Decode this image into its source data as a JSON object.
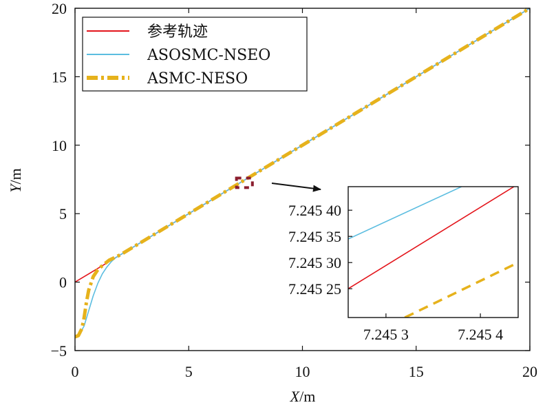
{
  "chart_data": [
    {
      "type": "line",
      "xlabel": {
        "var": "X",
        "unit": "/m"
      },
      "ylabel": {
        "var": "Y",
        "unit": "/m"
      },
      "xlim": [
        0,
        20
      ],
      "ylim": [
        -5,
        20
      ],
      "xticks": [
        "0",
        "5",
        "10",
        "15",
        "20"
      ],
      "yticks": [
        "−5",
        "0",
        "5",
        "10",
        "15",
        "20"
      ],
      "legend_position": "top-left",
      "series": [
        {
          "name": "参考轨迹",
          "color": "#e3141b",
          "style": "solid",
          "x": [
            0,
            20
          ],
          "y": [
            0,
            20
          ]
        },
        {
          "name": "ASOSMC-NSEO",
          "color": "#5bbde0",
          "style": "solid",
          "x": [
            0,
            0.2,
            0.4,
            0.6,
            0.8,
            1.0,
            1.2,
            1.4,
            1.6,
            1.8,
            2.0,
            2.5,
            3,
            5,
            10,
            15,
            20
          ],
          "y": [
            -4,
            -3.8,
            -3.2,
            -2.1,
            -1.0,
            -0.1,
            0.6,
            1.1,
            1.5,
            1.8,
            2.0,
            2.5,
            3,
            5,
            10,
            15,
            20
          ]
        },
        {
          "name": "ASMC-NESO",
          "color": "#e6b21c",
          "style": "dash-dot",
          "x": [
            0,
            0.15,
            0.3,
            0.4,
            0.5,
            0.6,
            0.8,
            1.0,
            1.2,
            1.5,
            2.0,
            2.5,
            3,
            5,
            10,
            15,
            20
          ],
          "y": [
            -4,
            -3.9,
            -3.4,
            -2.6,
            -1.5,
            -0.6,
            0.4,
            0.9,
            1.2,
            1.6,
            2.0,
            2.5,
            3,
            5,
            10,
            15,
            20
          ]
        }
      ],
      "zoom_box": {
        "x": [
          7.1,
          7.8
        ],
        "y": [
          6.9,
          7.6
        ]
      }
    },
    {
      "type": "line",
      "role": "inset",
      "xlim": [
        7.24526,
        7.24544
      ],
      "ylim": [
        7.245195,
        7.245445
      ],
      "xticks": [
        {
          "label": "7.245 3",
          "value": 7.2453
        },
        {
          "label": "7.245 4",
          "value": 7.2454
        }
      ],
      "yticks": [
        {
          "label": "7.245 25",
          "value": 7.24525
        },
        {
          "label": "7.245 30",
          "value": 7.2453
        },
        {
          "label": "7.245 35",
          "value": 7.24535
        },
        {
          "label": "7.245 40",
          "value": 7.2454
        }
      ],
      "series": [
        {
          "color": "#e3141b",
          "style": "solid",
          "x": [
            7.24526,
            7.24544
          ],
          "y": [
            7.24525,
            7.24545
          ]
        },
        {
          "color": "#5bbde0",
          "style": "solid",
          "x": [
            7.24526,
            7.24538
          ],
          "y": [
            7.245345,
            7.245445
          ]
        },
        {
          "color": "#e6b21c",
          "style": "dashed",
          "x": [
            7.24532,
            7.24544
          ],
          "y": [
            7.245195,
            7.2453
          ]
        }
      ]
    }
  ]
}
